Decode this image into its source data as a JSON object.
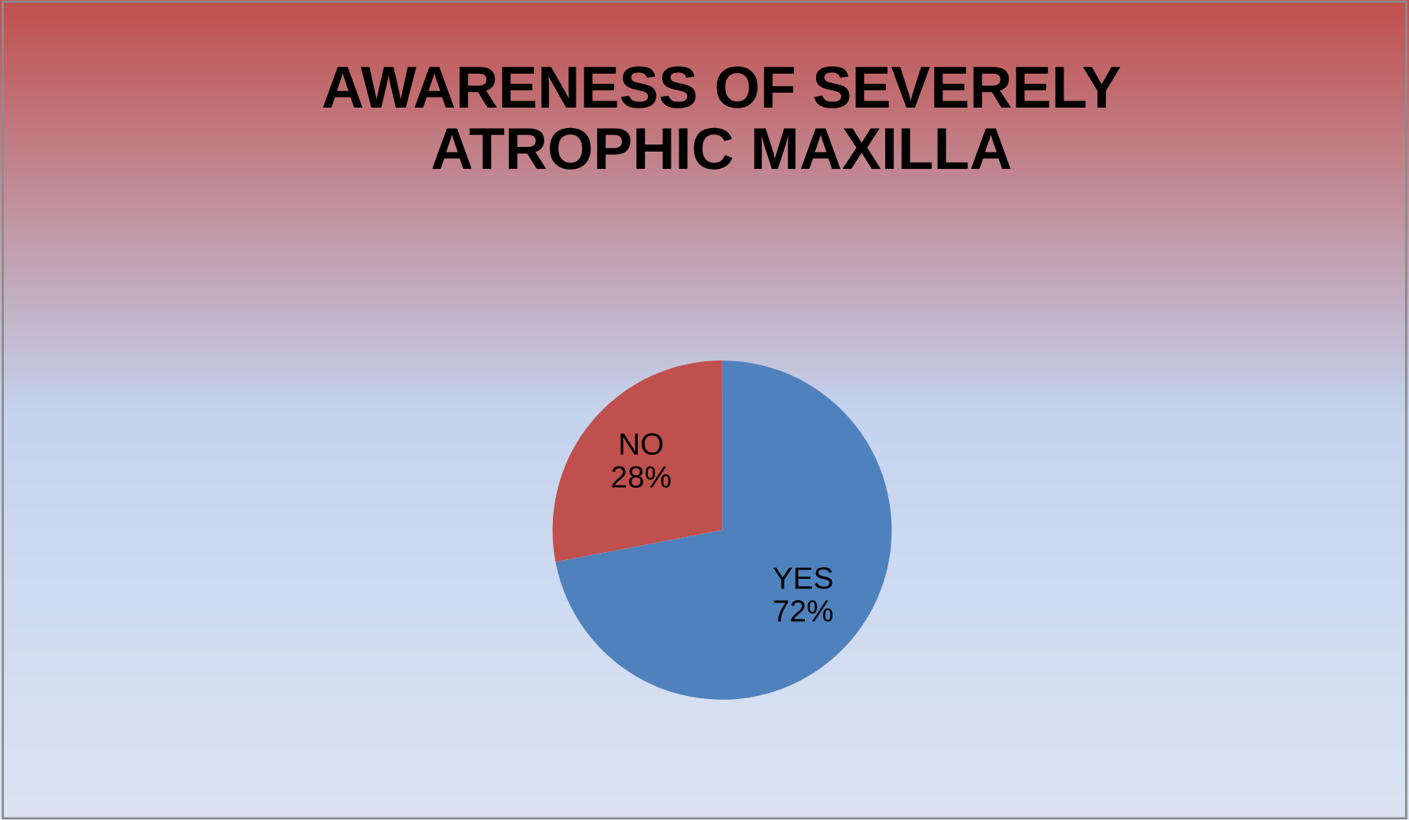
{
  "chart_data": {
    "type": "pie",
    "title": "AWARENESS OF SEVERELY\nATROPHIC MAXILLA",
    "categories": [
      "YES",
      "NO"
    ],
    "values": [
      72,
      28
    ],
    "value_labels": [
      "72%",
      "28%"
    ],
    "colors": [
      "#4f81bd",
      "#c0504d"
    ],
    "legend": false
  }
}
